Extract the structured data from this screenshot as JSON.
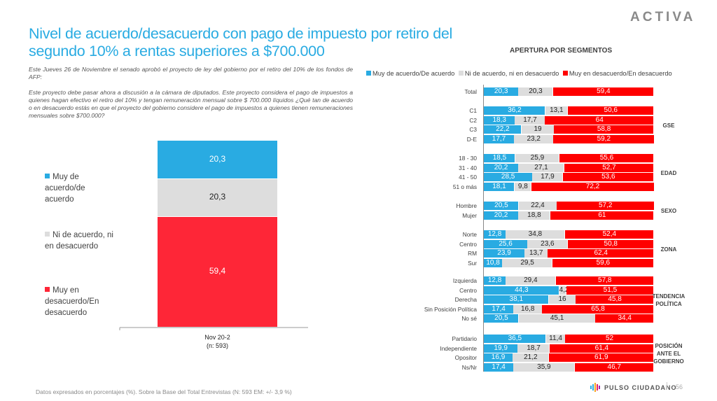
{
  "header": {
    "title": "Nivel de acuerdo/desacuerdo con pago de impuesto por retiro del segundo 10% a rentas superiores a $700.000",
    "logo": "ACTIVA",
    "intro_p1": "Este Jueves 26 de Noviembre el senado aprobó el proyecto de ley del gobierno por el retiro del 10% de los fondos de AFP:",
    "intro_p2": "Este proyecto debe pasar ahora a discusión a la cámara de diputados. Este proyecto considera  el pago de impuestos a quienes hagan efectivo el retiro del 10% y tengan remuneración mensual sobre $ 700.000 líquidos ¿Qué tan de acuerdo o en desacuerdo estás en que el proyecto del gobierno considere el pago de impuestos a quienes tienen remuneraciones mensuales sobre $700.000?"
  },
  "colors": {
    "agree": "#29abe2",
    "neutral": "#dddddd",
    "disagree": "#fe2637",
    "disagree_right": "#ff0000",
    "title": "#29abe2"
  },
  "chart_data": [
    {
      "type": "bar",
      "orientation": "vertical-stacked",
      "categories": [
        "Nov 20-2\n(n: 593)"
      ],
      "category_line1": "Nov 20-2",
      "category_line2": "(n: 593)",
      "series": [
        {
          "name": "Muy de acuerdo/de acuerdo",
          "values": [
            20.3
          ],
          "label": "20,3"
        },
        {
          "name": "Ni de acuerdo, ni en desacuerdo",
          "values": [
            20.3
          ],
          "label": "20,3"
        },
        {
          "name": "Muy en desacuerdo/En desacuerdo",
          "values": [
            59.4
          ],
          "label": "59,4"
        }
      ],
      "legend": [
        {
          "text": "Muy de acuerdo/de acuerdo",
          "lines": [
            "Muy de",
            "acuerdo/de",
            "acuerdo"
          ]
        },
        {
          "text": "Ni de acuerdo, ni en desacuerdo",
          "lines": [
            "Ni de acuerdo, ni",
            "en desacuerdo"
          ]
        },
        {
          "text": "Muy en desacuerdo/En desacuerdo",
          "lines": [
            "Muy en",
            "desacuerdo/En",
            "desacuerdo"
          ]
        }
      ],
      "legend_position": "left",
      "ylim": [
        0,
        100
      ]
    },
    {
      "type": "bar",
      "orientation": "horizontal-stacked",
      "title": "APERTURA POR SEGMENTOS",
      "legend": [
        "Muy de acuerdo/De acuerdo",
        "Ni de acuerdo, ni en desacuerdo",
        "Muy en desacuerdo/En desacuerdo"
      ],
      "legend_position": "top",
      "xlim": [
        0,
        100
      ],
      "groups": [
        {
          "name": "",
          "label_lines": [],
          "rows": [
            {
              "label": "Total",
              "values": [
                20.3,
                20.3,
                59.4
              ],
              "labels": [
                "20,3",
                "20,3",
                "59,4"
              ]
            }
          ]
        },
        {
          "name": "GSE",
          "label_lines": [
            "GSE"
          ],
          "rows": [
            {
              "label": "C1",
              "values": [
                36.2,
                13.1,
                50.6
              ],
              "labels": [
                "36,2",
                "13,1",
                "50,6"
              ]
            },
            {
              "label": "C2",
              "values": [
                18.3,
                17.7,
                64
              ],
              "labels": [
                "18,3",
                "17,7",
                "64"
              ]
            },
            {
              "label": "C3",
              "values": [
                22.2,
                19,
                58.8
              ],
              "labels": [
                "22,2",
                "19",
                "58,8"
              ]
            },
            {
              "label": "D-E",
              "values": [
                17.7,
                23.2,
                59.2
              ],
              "labels": [
                "17,7",
                "23,2",
                "59,2"
              ]
            }
          ]
        },
        {
          "name": "EDAD",
          "label_lines": [
            "EDAD"
          ],
          "rows": [
            {
              "label": "18 - 30",
              "values": [
                18.5,
                25.9,
                55.6
              ],
              "labels": [
                "18,5",
                "25,9",
                "55,6"
              ]
            },
            {
              "label": "31 - 40",
              "values": [
                20.2,
                27.1,
                52.7
              ],
              "labels": [
                "20,2",
                "27,1",
                "52,7"
              ]
            },
            {
              "label": "41 - 50",
              "values": [
                28.5,
                17.9,
                53.6
              ],
              "labels": [
                "28,5",
                "17,9",
                "53,6"
              ]
            },
            {
              "label": "51 o más",
              "values": [
                18.1,
                9.8,
                72.2
              ],
              "labels": [
                "18,1",
                "9,8",
                "72,2"
              ]
            }
          ]
        },
        {
          "name": "SEXO",
          "label_lines": [
            "SEXO"
          ],
          "rows": [
            {
              "label": "Hombre",
              "values": [
                20.5,
                22.4,
                57.2
              ],
              "labels": [
                "20,5",
                "22,4",
                "57,2"
              ]
            },
            {
              "label": "Mujer",
              "values": [
                20.2,
                18.8,
                61
              ],
              "labels": [
                "20,2",
                "18,8",
                "61"
              ]
            }
          ]
        },
        {
          "name": "ZONA",
          "label_lines": [
            "ZONA"
          ],
          "rows": [
            {
              "label": "Norte",
              "values": [
                12.8,
                34.8,
                52.4
              ],
              "labels": [
                "12,8",
                "34,8",
                "52,4"
              ]
            },
            {
              "label": "Centro",
              "values": [
                25.6,
                23.6,
                50.8
              ],
              "labels": [
                "25,6",
                "23,6",
                "50,8"
              ]
            },
            {
              "label": "RM",
              "values": [
                23.9,
                13.7,
                62.4
              ],
              "labels": [
                "23,9",
                "13,7",
                "62,4"
              ]
            },
            {
              "label": "Sur",
              "values": [
                10.8,
                29.5,
                59.6
              ],
              "labels": [
                "10,8",
                "29,5",
                "59,6"
              ]
            }
          ]
        },
        {
          "name": "TENDENCIA POLÍTICA",
          "label_lines": [
            "TENDENCIA",
            "POLÍTICA"
          ],
          "rows": [
            {
              "label": "Izquierda",
              "values": [
                12.8,
                29.4,
                57.8
              ],
              "labels": [
                "12,8",
                "29,4",
                "57,8"
              ]
            },
            {
              "label": "Centro",
              "values": [
                44.3,
                4.2,
                51.5
              ],
              "labels": [
                "44,3",
                "4,2",
                "51,5"
              ]
            },
            {
              "label": "Derecha",
              "values": [
                38.1,
                16,
                45.8
              ],
              "labels": [
                "38,1",
                "16",
                "45,8"
              ]
            },
            {
              "label": "Sin Posición Política",
              "values": [
                17.4,
                16.8,
                65.8
              ],
              "labels": [
                "17,4",
                "16,8",
                "65,8"
              ]
            },
            {
              "label": "No sé",
              "values": [
                20.5,
                45.1,
                34.4
              ],
              "labels": [
                "20,5",
                "45,1",
                "34,4"
              ]
            }
          ]
        },
        {
          "name": "POSICIÓN ANTE EL GOBIERNO",
          "label_lines": [
            "POSICIÓN",
            "ANTE EL",
            "GOBIERNO"
          ],
          "rows": [
            {
              "label": "Partidario",
              "values": [
                36.5,
                11.4,
                52
              ],
              "labels": [
                "36,5",
                "11,4",
                "52"
              ]
            },
            {
              "label": "Independiente",
              "values": [
                19.9,
                18.7,
                61.4
              ],
              "labels": [
                "19,9",
                "18,7",
                "61,4"
              ]
            },
            {
              "label": "Opositor",
              "values": [
                16.9,
                21.2,
                61.9
              ],
              "labels": [
                "16,9",
                "21,2",
                "61,9"
              ]
            },
            {
              "label": "Ns/Nr",
              "values": [
                17.4,
                35.9,
                46.7
              ],
              "labels": [
                "17,4",
                "35,9",
                "46,7"
              ]
            }
          ]
        }
      ]
    }
  ],
  "footer": {
    "note": "Datos expresados en porcentajes (%). Sobre la Base del Total Entrevistas (N: 593  EM: +/- 3,9 %)",
    "brand": "PULSO CIUDADANO",
    "page": "56"
  }
}
